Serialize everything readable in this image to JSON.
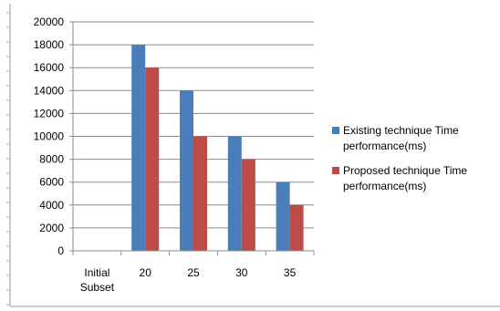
{
  "chart_data": {
    "type": "bar",
    "categories": [
      "Initial\nSubset",
      "20",
      "25",
      "30",
      "35"
    ],
    "series": [
      {
        "name": "Existing technique Time performance(ms)",
        "values": [
          0,
          18000,
          14000,
          10000,
          6000
        ],
        "color": "#4a7ebb"
      },
      {
        "name": "Proposed technique  Time performance(ms)",
        "values": [
          0,
          16000,
          10000,
          8000,
          4000
        ],
        "color": "#be4b48"
      }
    ],
    "ylim": [
      0,
      20000
    ],
    "ytick_step": 2000,
    "grid": true,
    "legend": "right",
    "title": "",
    "xlabel": "",
    "ylabel": ""
  }
}
